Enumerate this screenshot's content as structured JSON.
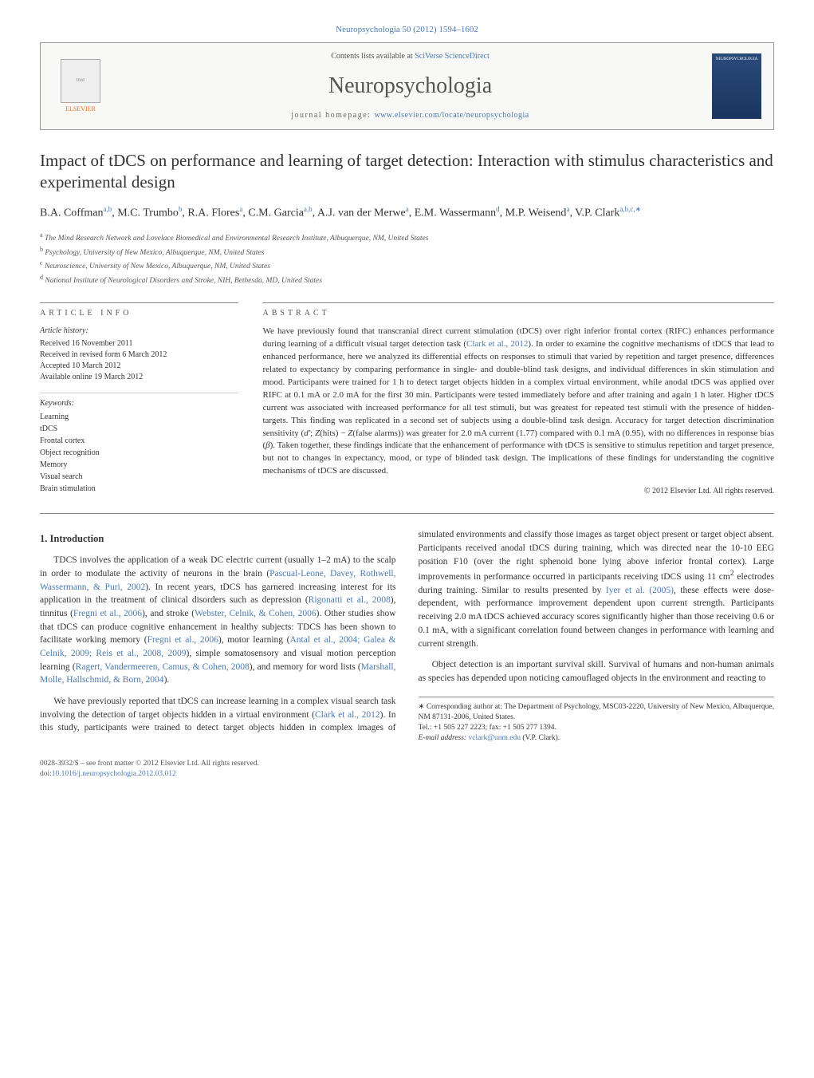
{
  "journal_ref": "Neuropsychologia 50 (2012) 1594–1602",
  "header": {
    "contents_prefix": "Contents lists available at ",
    "contents_link": "SciVerse ScienceDirect",
    "journal_name": "Neuropsychologia",
    "homepage_prefix": "journal homepage: ",
    "homepage_link": "www.elsevier.com/locate/neuropsychologia",
    "elsevier_label": "ELSEVIER",
    "cover_label": "NEUROPSYCHOLOGIA"
  },
  "title": "Impact of tDCS on performance and learning of target detection: Interaction with stimulus characteristics and experimental design",
  "authors_html": "B.A. Coffman<sup>a,b</sup>, M.C. Trumbo<sup>b</sup>, R.A. Flores<sup>a</sup>, C.M. Garcia<sup>a,b</sup>, A.J. van der Merwe<sup>a</sup>, E.M. Wassermann<sup>d</sup>, M.P. Weisend<sup>a</sup>, V.P. Clark<sup>a,b,c,∗</sup>",
  "affiliations": [
    {
      "sup": "a",
      "text": "The Mind Research Network and Lovelace Biomedical and Environmental Research Institute, Albuquerque, NM, United States"
    },
    {
      "sup": "b",
      "text": "Psychology, University of New Mexico, Albuquerque, NM, United States"
    },
    {
      "sup": "c",
      "text": "Neuroscience, University of New Mexico, Albuquerque, NM, United States"
    },
    {
      "sup": "d",
      "text": "National Institute of Neurological Disorders and Stroke, NIH, Bethesda, MD, United States"
    }
  ],
  "article_info": {
    "heading": "article info",
    "history_label": "Article history:",
    "history": [
      "Received 16 November 2011",
      "Received in revised form 6 March 2012",
      "Accepted 10 March 2012",
      "Available online 19 March 2012"
    ],
    "keywords_label": "Keywords:",
    "keywords": [
      "Learning",
      "tDCS",
      "Frontal cortex",
      "Object recognition",
      "Memory",
      "Visual search",
      "Brain stimulation"
    ]
  },
  "abstract": {
    "heading": "abstract",
    "text_html": "We have previously found that transcranial direct current stimulation (tDCS) over right inferior frontal cortex (RIFC) enhances performance during learning of a difficult visual target detection task (<a href='#'>Clark et al., 2012</a>). In order to examine the cognitive mechanisms of tDCS that lead to enhanced performance, here we analyzed its differential effects on responses to stimuli that varied by repetition and target presence, differences related to expectancy by comparing performance in single- and double-blind task designs, and individual differences in skin stimulation and mood. Participants were trained for 1 h to detect target objects hidden in a complex virtual environment, while anodal tDCS was applied over RIFC at 0.1 mA or 2.0 mA for the first 30 min. Participants were tested immediately before and after training and again 1 h later. Higher tDCS current was associated with increased performance for all test stimuli, but was greatest for repeated test stimuli with the presence of hidden-targets. This finding was replicated in a second set of subjects using a double-blind task design. Accuracy for target detection discrimination sensitivity (<i>d′</i>; <i>Z</i>(hits) − <i>Z</i>(false alarms)) was greater for 2.0 mA current (1.77) compared with 0.1 mA (0.95), with no differences in response bias (<i>β</i>). Taken together, these findings indicate that the enhancement of performance with tDCS is sensitive to stimulus repetition and target presence, but not to changes in expectancy, mood, or type of blinded task design. The implications of these findings for understanding the cognitive mechanisms of tDCS are discussed.",
    "copyright": "© 2012 Elsevier Ltd. All rights reserved."
  },
  "body": {
    "section_heading": "1. Introduction",
    "p1_html": "TDCS involves the application of a weak DC electric current (usually 1–2 mA) to the scalp in order to modulate the activity of neurons in the brain (<a href='#'>Pascual-Leone, Davey, Rothwell, Wassermann, & Puri, 2002</a>). In recent years, tDCS has garnered increasing interest for its application in the treatment of clinical disorders such as depression (<a href='#'>Rigonatti et al., 2008</a>), tinnitus (<a href='#'>Fregni et al., 2006</a>), and stroke (<a href='#'>Webster, Celnik, & Cohen, 2006</a>). Other studies show that tDCS can produce cognitive enhancement in healthy subjects: TDCS has been shown to facilitate working memory (<a href='#'>Fregni et al., 2006</a>), motor learning (<a href='#'>Antal et al., 2004; Galea & Celnik, 2009; Reis et al., 2008, 2009</a>), simple somatosensory and visual motion perception learning (<a href='#'>Ragert, Vandermeeren, Camus, & Cohen, 2008</a>), and memory for word lists (<a href='#'>Marshall, Molle, Hallschmid, & Born, 2004</a>).",
    "p2_html": "We have previously reported that tDCS can increase learning in a complex visual search task involving the detection of target objects hidden in a virtual environment (<a href='#'>Clark et al., 2012</a>). In this study, participants were trained to detect target objects hidden in complex images of simulated environments and classify those images as target object present or target object absent. Participants received anodal tDCS during training, which was directed near the 10-10 EEG position F10 (over the right sphenoid bone lying above inferior frontal cortex). Large improvements in performance occurred in participants receiving tDCS using 11 cm<sup>2</sup> electrodes during training. Similar to results presented by <a href='#'>Iyer et al. (2005)</a>, these effects were dose-dependent, with performance improvement dependent upon current strength. Participants receiving 2.0 mA tDCS achieved accuracy scores significantly higher than those receiving 0.6 or 0.1 mA, with a significant correlation found between changes in performance with learning and current strength.",
    "p3_html": "Object detection is an important survival skill. Survival of humans and non-human animals as species has depended upon noticing camouflaged objects in the environment and reacting to"
  },
  "footnote": {
    "corresponding": "∗ Corresponding author at: The Department of Psychology, MSC03-2220, University of New Mexico, Albuquerque, NM 87131-2006, United States.",
    "tel_fax": "Tel.: +1 505 227 2223; fax: +1 505 277 1394.",
    "email_label": "E-mail address: ",
    "email": "vclark@unm.edu",
    "email_suffix": " (V.P. Clark)."
  },
  "footer": {
    "line1": "0028-3932/$ – see front matter © 2012 Elsevier Ltd. All rights reserved.",
    "doi_label": "doi:",
    "doi": "10.1016/j.neuropsychologia.2012.03.012"
  },
  "colors": {
    "link": "#4a7ab0",
    "elsevier_orange": "#e9711c",
    "text": "#333333",
    "rule": "#888888"
  }
}
